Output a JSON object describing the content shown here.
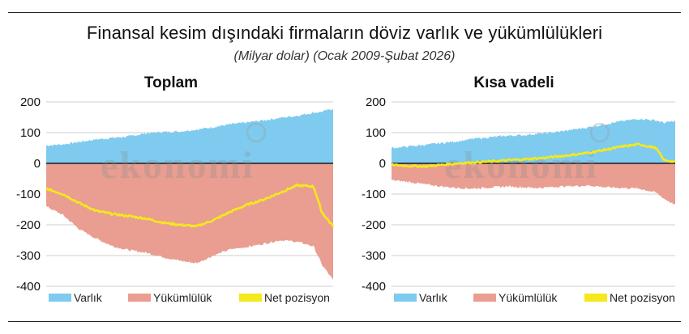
{
  "title": "Finansal kesim dışındaki firmaların döviz varlık ve yükümlülükleri",
  "subtitle": "(Milyar dolar) (Ocak 2009-Şubat 2026)",
  "watermark": "ekonomi",
  "colors": {
    "asset": "#7ecbef",
    "liability": "#e99e91",
    "net": "#f5e81c"
  },
  "chart_data": [
    {
      "type": "area",
      "title": "Toplam",
      "ylim": [
        -400,
        200
      ],
      "yticks": [
        "200",
        "100",
        "0",
        "-100",
        "-200",
        "-300",
        "-400"
      ],
      "xrange": [
        2009.0,
        2026.17
      ],
      "series": [
        {
          "name": "Varlık",
          "color": "#7ecbef",
          "x": [
            2009.0,
            2010.0,
            2011.0,
            2012.0,
            2013.0,
            2014.0,
            2015.0,
            2016.0,
            2017.0,
            2018.0,
            2019.0,
            2020.0,
            2021.0,
            2022.0,
            2023.0,
            2024.0,
            2025.0,
            2025.5,
            2026.17
          ],
          "values": [
            58,
            62,
            70,
            78,
            83,
            88,
            98,
            102,
            104,
            110,
            118,
            127,
            133,
            140,
            148,
            155,
            165,
            168,
            178
          ]
        },
        {
          "name": "Yükümlülük",
          "color": "#e99e91",
          "x": [
            2009.0,
            2010.0,
            2011.0,
            2012.0,
            2013.0,
            2014.0,
            2015.0,
            2016.0,
            2017.0,
            2018.0,
            2019.0,
            2020.0,
            2021.0,
            2022.0,
            2023.0,
            2024.0,
            2025.0,
            2025.5,
            2026.17
          ],
          "values": [
            -140,
            -168,
            -215,
            -245,
            -270,
            -283,
            -291,
            -305,
            -317,
            -325,
            -300,
            -280,
            -272,
            -262,
            -250,
            -255,
            -270,
            -330,
            -380
          ]
        },
        {
          "name": "Net pozisyon",
          "color": "#f5e81c",
          "x": [
            2009.0,
            2010.0,
            2011.0,
            2012.0,
            2013.0,
            2014.0,
            2015.0,
            2016.0,
            2017.0,
            2018.0,
            2019.0,
            2020.0,
            2021.0,
            2022.0,
            2023.0,
            2024.0,
            2025.0,
            2025.5,
            2026.17
          ],
          "values": [
            -82,
            -100,
            -130,
            -155,
            -165,
            -172,
            -180,
            -193,
            -200,
            -205,
            -185,
            -158,
            -135,
            -118,
            -95,
            -72,
            -75,
            -160,
            -205
          ]
        }
      ]
    },
    {
      "type": "area",
      "title": "Kısa vadeli",
      "ylim": [
        -400,
        200
      ],
      "yticks": [
        "200",
        "100",
        "0",
        "-100",
        "-200",
        "-300",
        "-400"
      ],
      "xrange": [
        2009.0,
        2026.17
      ],
      "series": [
        {
          "name": "Varlık",
          "color": "#7ecbef",
          "x": [
            2009.0,
            2010.0,
            2011.0,
            2012.0,
            2013.0,
            2014.0,
            2015.0,
            2016.0,
            2017.0,
            2018.0,
            2019.0,
            2020.0,
            2021.0,
            2022.0,
            2023.0,
            2024.0,
            2025.0,
            2025.5,
            2026.17
          ],
          "values": [
            50,
            55,
            60,
            66,
            72,
            80,
            85,
            90,
            92,
            97,
            102,
            110,
            118,
            128,
            138,
            145,
            140,
            132,
            138
          ]
        },
        {
          "name": "Yükümlülük",
          "color": "#e99e91",
          "x": [
            2009.0,
            2010.0,
            2011.0,
            2012.0,
            2013.0,
            2014.0,
            2015.0,
            2016.0,
            2017.0,
            2018.0,
            2019.0,
            2020.0,
            2021.0,
            2022.0,
            2023.0,
            2024.0,
            2025.0,
            2025.5,
            2026.17
          ],
          "values": [
            -55,
            -60,
            -68,
            -75,
            -80,
            -82,
            -78,
            -75,
            -78,
            -80,
            -76,
            -74,
            -72,
            -78,
            -80,
            -82,
            -95,
            -115,
            -135
          ]
        },
        {
          "name": "Net pozisyon",
          "color": "#f5e81c",
          "x": [
            2009.0,
            2010.0,
            2011.0,
            2012.0,
            2013.0,
            2014.0,
            2015.0,
            2016.0,
            2017.0,
            2018.0,
            2019.0,
            2020.0,
            2021.0,
            2022.0,
            2023.0,
            2024.0,
            2025.0,
            2025.5,
            2026.17
          ],
          "values": [
            -5,
            -8,
            -10,
            -5,
            0,
            3,
            6,
            10,
            13,
            17,
            22,
            28,
            35,
            45,
            55,
            62,
            50,
            10,
            5
          ]
        }
      ]
    }
  ]
}
